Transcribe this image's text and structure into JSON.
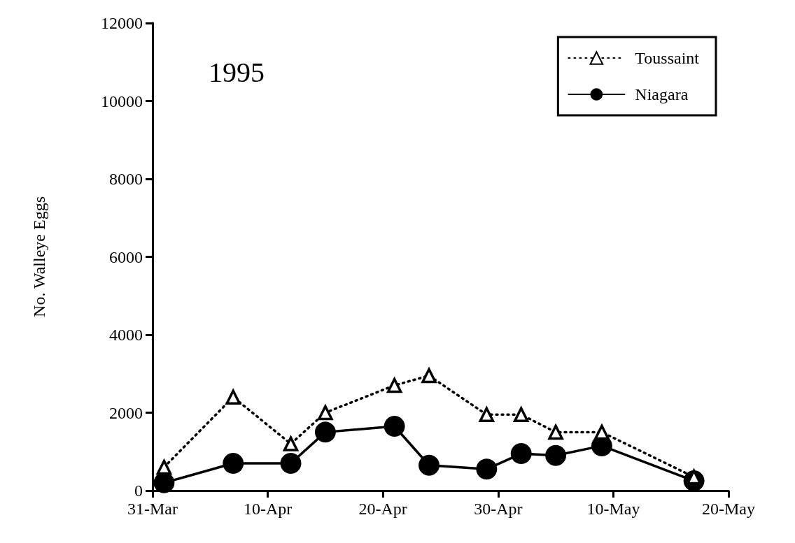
{
  "chart_data": {
    "type": "line",
    "ylabel": "No. Walleye Eggs",
    "annotations": [
      "1995"
    ],
    "x": [
      "1995-04-01",
      "1995-04-07",
      "1995-04-12",
      "1995-04-15",
      "1995-04-21",
      "1995-04-24",
      "1995-04-29",
      "1995-05-02",
      "1995-05-05",
      "1995-05-09",
      "1995-05-17"
    ],
    "series": [
      {
        "name": "Toussaint",
        "color": "#000000",
        "marker": "triangle",
        "line_style": "dotted",
        "values": [
          600,
          2400,
          1200,
          2000,
          2700,
          2950,
          1950,
          1950,
          1500,
          1500,
          350
        ]
      },
      {
        "name": "Niagara",
        "color": "#000000",
        "marker": "circle",
        "line_style": "solid",
        "values": [
          200,
          700,
          700,
          1500,
          1650,
          650,
          550,
          950,
          900,
          1150,
          250
        ]
      }
    ],
    "xlim": [
      "1995-03-31",
      "1995-05-20"
    ],
    "xticks": [
      {
        "value": "1995-03-31",
        "label": "31-Mar"
      },
      {
        "value": "1995-04-10",
        "label": "10-Apr"
      },
      {
        "value": "1995-04-20",
        "label": "20-Apr"
      },
      {
        "value": "1995-04-30",
        "label": "30-Apr"
      },
      {
        "value": "1995-05-10",
        "label": "10-May"
      },
      {
        "value": "1995-05-20",
        "label": "20-May"
      }
    ],
    "ylim": [
      0,
      12000
    ],
    "yticks": [
      0,
      2000,
      4000,
      6000,
      8000,
      10000,
      12000
    ],
    "grid": false,
    "legend": "top right"
  }
}
